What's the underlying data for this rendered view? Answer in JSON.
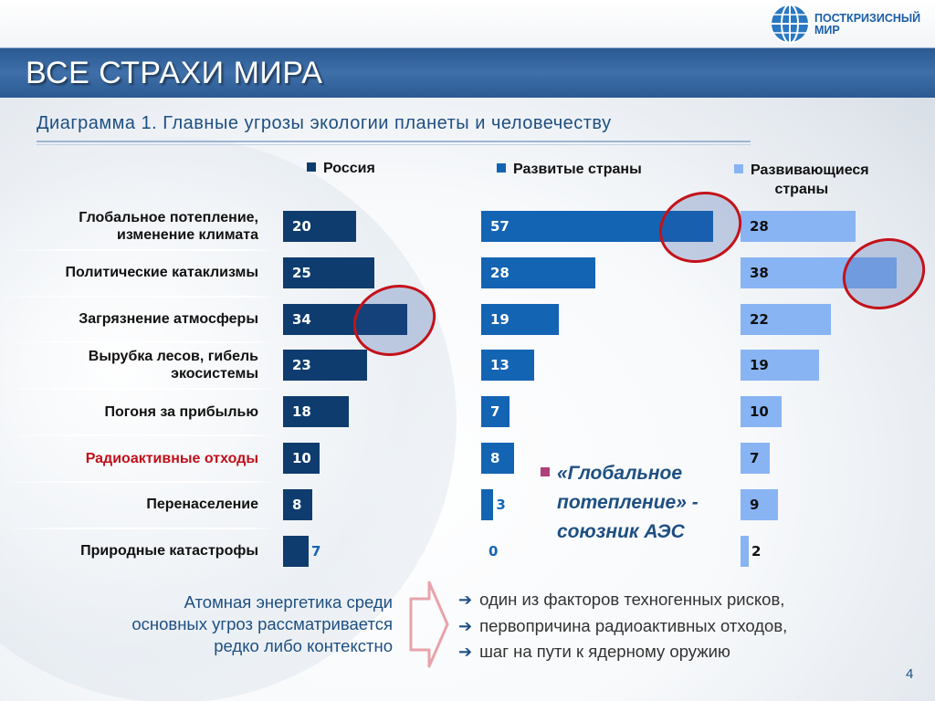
{
  "header": {
    "logo_line1": "ПОСТКРИЗИСНЫЙ",
    "logo_line2": "МИР",
    "title": "ВСЕ СТРАХИ МИРА"
  },
  "chart_data": {
    "type": "bar",
    "title": "Диаграмма 1. Главные угрозы экологии планеты и человечеству",
    "categories": [
      "Глобальное потепление, изменение климата",
      "Политические катаклизмы",
      "Загрязнение атмосферы",
      "Вырубка лесов, гибель экосистемы",
      "Погоня за прибылью",
      "Радиоактивные отходы",
      "Перенаселение",
      "Природные катастрофы"
    ],
    "category_lines": [
      [
        "Глобальное потепление,",
        "изменение климата"
      ],
      [
        "Политические катаклизмы"
      ],
      [
        "Загрязнение атмосферы"
      ],
      [
        "Вырубка лесов, гибель",
        "экосистемы"
      ],
      [
        "Погоня за прибылью"
      ],
      [
        "Радиоактивные отходы"
      ],
      [
        "Перенаселение"
      ],
      [
        "Природные катастрофы"
      ]
    ],
    "highlight_category": 5,
    "series": [
      {
        "name": "Россия",
        "values": [
          20,
          25,
          34,
          23,
          18,
          10,
          8,
          7
        ],
        "color": "#0f3c6e"
      },
      {
        "name": "Развитые страны",
        "values": [
          57,
          28,
          19,
          13,
          7,
          8,
          3,
          0
        ],
        "color": "#1464b4"
      },
      {
        "name": "Развивающиеся страны",
        "name_lines": [
          "Развивающиеся",
          "страны"
        ],
        "values": [
          28,
          38,
          22,
          19,
          10,
          7,
          9,
          2
        ],
        "color": "#88b4f4"
      }
    ],
    "highlighted_max": [
      {
        "series": 0,
        "category": 2
      },
      {
        "series": 1,
        "category": 0
      },
      {
        "series": 2,
        "category": 1
      }
    ]
  },
  "annotation": {
    "lines": [
      "«Глобальное",
      "потепление» -",
      "союзник АЭС"
    ]
  },
  "bottom": {
    "left_lines": [
      "Атомная энергетика среди",
      "основных угроз рассматривается",
      "редко либо контекстно"
    ],
    "bullets": [
      "один из факторов техногенных рисков,",
      "первопричина радиоактивных отходов,",
      "шаг на пути к ядерному оружию"
    ]
  },
  "page_number": "4"
}
